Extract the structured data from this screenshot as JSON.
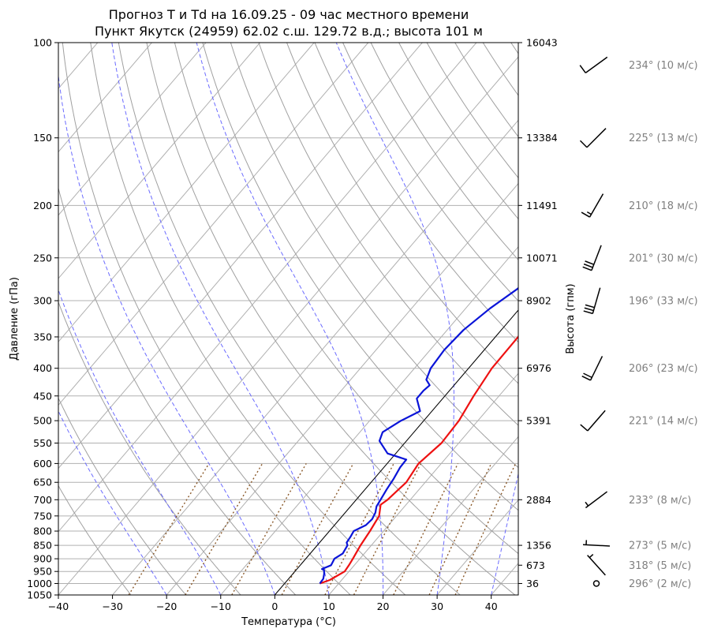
{
  "chart_data": {
    "type": "line",
    "title_line1": "Прогноз T и Td на 16.09.25 - 09 час местного времени",
    "title_line2": "Пункт Якутск (24959) 62.02 с.ш. 129.72 в.д.; высота 101 м",
    "xlabel": "Температура (°C)",
    "ylabel": "Давление (гПа)",
    "y2label": "Высота (гпм)",
    "xlim": [
      -40,
      45
    ],
    "ylim": [
      1050,
      100
    ],
    "yscale": "log",
    "grid": true,
    "x_ticks": [
      -40,
      -30,
      -20,
      -10,
      0,
      10,
      20,
      30,
      40
    ],
    "x_tick_labels": [
      "−40",
      "−30",
      "−20",
      "−10",
      "0",
      "10",
      "20",
      "30",
      "40"
    ],
    "y_ticks": [
      1050,
      1000,
      950,
      900,
      850,
      800,
      750,
      700,
      650,
      600,
      550,
      500,
      450,
      400,
      350,
      300,
      250,
      200,
      150,
      100
    ],
    "y_tick_labels": [
      "1050",
      "1000",
      "950",
      "900",
      "850",
      "800",
      "750",
      "700",
      "650",
      "600",
      "550",
      "500",
      "450",
      "400",
      "350",
      "300",
      "250",
      "200",
      "150",
      "100"
    ],
    "height_labels": [
      {
        "p": 100,
        "label": "16043"
      },
      {
        "p": 150,
        "label": "13384"
      },
      {
        "p": 200,
        "label": "11491"
      },
      {
        "p": 250,
        "label": "10071"
      },
      {
        "p": 300,
        "label": "8902"
      },
      {
        "p": 400,
        "label": "6976"
      },
      {
        "p": 500,
        "label": "5391"
      },
      {
        "p": 700,
        "label": "2884"
      },
      {
        "p": 850,
        "label": "1356"
      },
      {
        "p": 925,
        "label": "673"
      },
      {
        "p": 1000,
        "label": "36"
      }
    ],
    "series": [
      {
        "key": "T",
        "color": "#ee1111",
        "points": [
          [
            1000,
            6.5
          ],
          [
            985,
            7.8
          ],
          [
            950,
            9.2
          ],
          [
            925,
            9.0
          ],
          [
            900,
            8.7
          ],
          [
            850,
            8.0
          ],
          [
            800,
            7.5
          ],
          [
            750,
            6.8
          ],
          [
            715,
            5.3
          ],
          [
            700,
            5.8
          ],
          [
            650,
            6.5
          ],
          [
            600,
            5.8
          ],
          [
            550,
            6.8
          ],
          [
            500,
            6.5
          ],
          [
            450,
            5.3
          ],
          [
            400,
            4.3
          ],
          [
            350,
            4.2
          ],
          [
            320,
            3.7
          ],
          [
            300,
            3.3
          ],
          [
            275,
            2.3
          ],
          [
            265,
            3.2
          ],
          [
            255,
            4.8
          ],
          [
            240,
            8.5
          ],
          [
            225,
            13.0
          ],
          [
            210,
            15.5
          ],
          [
            200,
            17.0
          ],
          [
            187,
            22.0
          ],
          [
            160,
            28.5
          ],
          [
            150,
            30.5
          ],
          [
            130,
            34.0
          ],
          [
            120,
            36.0
          ],
          [
            110,
            40.0
          ],
          [
            104,
            44.0
          ],
          [
            101,
            45.0
          ]
        ]
      },
      {
        "key": "Td",
        "color": "#0a14d8",
        "points": [
          [
            1000,
            6.5
          ],
          [
            980,
            6.4
          ],
          [
            960,
            5.8
          ],
          [
            945,
            5.2
          ],
          [
            940,
            4.6
          ],
          [
            925,
            5.7
          ],
          [
            900,
            5.3
          ],
          [
            880,
            6.0
          ],
          [
            850,
            5.6
          ],
          [
            840,
            5.0
          ],
          [
            820,
            4.8
          ],
          [
            800,
            4.5
          ],
          [
            780,
            5.8
          ],
          [
            760,
            6.0
          ],
          [
            740,
            5.6
          ],
          [
            720,
            4.8
          ],
          [
            700,
            4.5
          ],
          [
            670,
            4.0
          ],
          [
            640,
            3.6
          ],
          [
            610,
            3.0
          ],
          [
            590,
            2.9
          ],
          [
            575,
            -1.5
          ],
          [
            545,
            -5.0
          ],
          [
            525,
            -5.8
          ],
          [
            500,
            -4.2
          ],
          [
            480,
            -2.2
          ],
          [
            455,
            -4.8
          ],
          [
            440,
            -4.8
          ],
          [
            430,
            -4.5
          ],
          [
            420,
            -6.0
          ],
          [
            400,
            -7.0
          ],
          [
            370,
            -7.4
          ],
          [
            340,
            -7.0
          ],
          [
            310,
            -5.5
          ],
          [
            285,
            -3.5
          ],
          [
            270,
            -3.2
          ],
          [
            260,
            -4.5
          ],
          [
            246,
            -6.8
          ],
          [
            235,
            -2.0
          ],
          [
            220,
            3.0
          ],
          [
            200,
            7.5
          ],
          [
            190,
            9.5
          ],
          [
            165,
            13.5
          ],
          [
            150,
            16.5
          ],
          [
            130,
            20.5
          ],
          [
            118,
            23.5
          ],
          [
            110,
            27.0
          ],
          [
            100,
            31.0
          ]
        ]
      }
    ],
    "wind": [
      {
        "p": 110,
        "dir": 234,
        "speed": 10,
        "label": "234° (10 м/с)"
      },
      {
        "p": 150,
        "dir": 225,
        "speed": 13,
        "label": "225° (13 м/с)"
      },
      {
        "p": 200,
        "dir": 210,
        "speed": 18,
        "label": "210° (18 м/с)"
      },
      {
        "p": 250,
        "dir": 201,
        "speed": 30,
        "label": "201° (30 м/с)"
      },
      {
        "p": 300,
        "dir": 196,
        "speed": 33,
        "label": "196° (33 м/с)"
      },
      {
        "p": 400,
        "dir": 206,
        "speed": 23,
        "label": "206° (23 м/с)"
      },
      {
        "p": 500,
        "dir": 221,
        "speed": 14,
        "label": "221° (14 м/с)"
      },
      {
        "p": 700,
        "dir": 233,
        "speed": 8,
        "label": "233° (8 м/с)"
      },
      {
        "p": 850,
        "dir": 273,
        "speed": 5,
        "label": "273° (5 м/с)"
      },
      {
        "p": 925,
        "dir": 318,
        "speed": 5,
        "label": "318° (5 м/с)"
      },
      {
        "p": 1000,
        "dir": 296,
        "speed": 2,
        "label": "296° (2 м/с)"
      }
    ],
    "colors": {
      "temperature": "#ee1111",
      "dewpoint": "#0a14d8",
      "dry_adiabats": "#a0a0a0",
      "moist_adiabats": "#6b6bff",
      "mixing_ratio": "#8b5a2b",
      "wind_text": "#808080"
    }
  }
}
